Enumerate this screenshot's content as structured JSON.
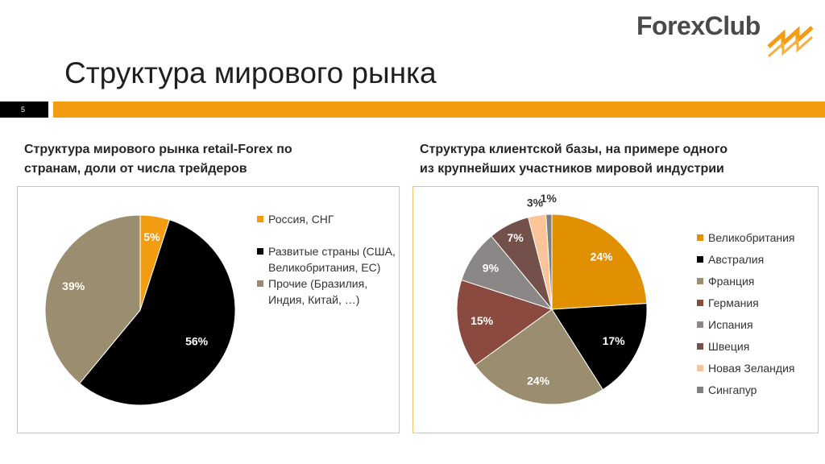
{
  "logo": {
    "word1": "Forex",
    "word2": "Club"
  },
  "slide": {
    "title": "Структура мирового рынка",
    "page_number": "5"
  },
  "colors": {
    "accent": "#f39c12",
    "orange": "#f39c12",
    "black": "#000000",
    "taupe": "#9b8d6f",
    "dark_orange": "#e09000",
    "brown_red": "#8a4a3f",
    "gray": "#8b8786",
    "dark_brown": "#73504a",
    "peach": "#fbc398",
    "slate": "#7f7f7f"
  },
  "left_panel": {
    "subtitle_line1": "Структура мирового рынка retail-Forex по",
    "subtitle_line2": "странам, доли от числа трейдеров"
  },
  "right_panel": {
    "subtitle_line1": "Структура клиентской базы, на примере одного",
    "subtitle_line2": "из крупнейших участников мировой индустрии"
  },
  "chart_data": [
    {
      "type": "pie",
      "title": "Структура мирового рынка retail-Forex по странам, доли от числа трейдеров",
      "categories": [
        "Россия, СНГ",
        "Развитые страны (США, Великобритания, ЕС)",
        "Прочие (Бразилия, Индия, Китай, …)"
      ],
      "values": [
        5,
        56,
        39
      ],
      "data_labels": [
        "5%",
        "56%",
        "39%"
      ],
      "colors": [
        "#f39c12",
        "#000000",
        "#9b8d6f"
      ],
      "legend_position": "right"
    },
    {
      "type": "pie",
      "title": "Структура клиентской базы, на примере одного из крупнейших участников мировой индустрии",
      "categories": [
        "Великобритания",
        "Австралия",
        "Франция",
        "Германия",
        "Испания",
        "Швеция",
        "Новая Зеландия",
        "Сингапур"
      ],
      "values": [
        24,
        17,
        24,
        15,
        9,
        7,
        3,
        1
      ],
      "data_labels": [
        "24%",
        "17%",
        "24%",
        "15%",
        "9%",
        "7%",
        "3%",
        "1%"
      ],
      "colors": [
        "#e09000",
        "#000000",
        "#9b8d6f",
        "#8a4a3f",
        "#8b8786",
        "#73504a",
        "#fbc398",
        "#7f7f7f"
      ],
      "legend_position": "right"
    }
  ]
}
